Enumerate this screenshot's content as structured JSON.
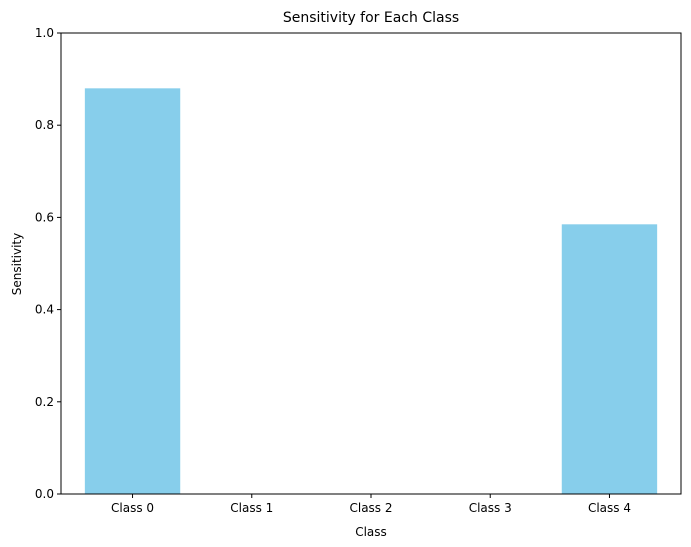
{
  "chart_data": {
    "type": "bar",
    "title": "Sensitivity for Each Class",
    "xlabel": "Class",
    "ylabel": "Sensitivity",
    "categories": [
      "Class 0",
      "Class 1",
      "Class 2",
      "Class 3",
      "Class 4"
    ],
    "values": [
      0.88,
      0.0,
      0.0,
      0.0,
      0.585
    ],
    "ylim": [
      0,
      1
    ],
    "yticks": [
      0.0,
      0.2,
      0.4,
      0.6,
      0.8,
      1.0
    ],
    "ytick_labels": [
      "0.0",
      "0.2",
      "0.4",
      "0.6",
      "0.8",
      "1.0"
    ],
    "grid": false,
    "bar_color": "#87ceeb"
  }
}
